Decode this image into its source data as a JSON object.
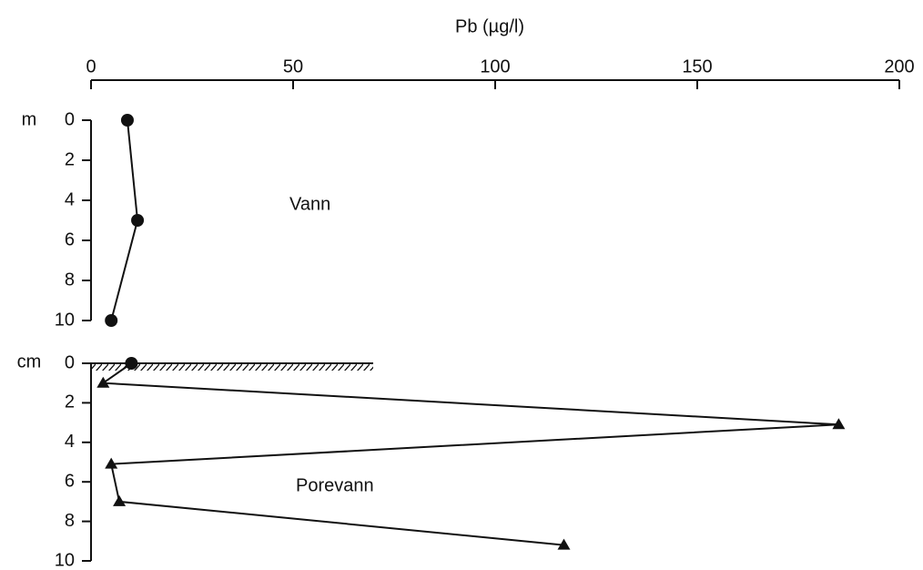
{
  "chart_data": {
    "type": "line",
    "x_label": "Pb (µg/l)",
    "xlim": [
      0,
      200
    ],
    "xticks": [
      0,
      50,
      100,
      150,
      200
    ],
    "y_label": "m",
    "ylim": [
      0,
      10
    ],
    "yticks": [
      0,
      2,
      4,
      6,
      8,
      10
    ],
    "y2_label": "cm",
    "y2lim": [
      0,
      10
    ],
    "y2ticks": [
      0,
      2,
      4,
      6,
      8,
      10
    ],
    "series": [
      {
        "name": "Vann",
        "color": "#111111",
        "x": [
          9,
          11.5,
          5
        ],
        "values": [
          0,
          5,
          10
        ],
        "markers": [
          "circle",
          "circle",
          "circle"
        ]
      },
      {
        "name": "Porevann",
        "axis": "y2",
        "color": "#111111",
        "x": [
          10,
          3,
          185,
          5,
          7,
          117
        ],
        "values": [
          0,
          1,
          3.1,
          5.1,
          7,
          9.2
        ],
        "markers": [
          "circle",
          "triangle",
          "triangle",
          "triangle",
          "triangle",
          "triangle"
        ]
      }
    ]
  }
}
